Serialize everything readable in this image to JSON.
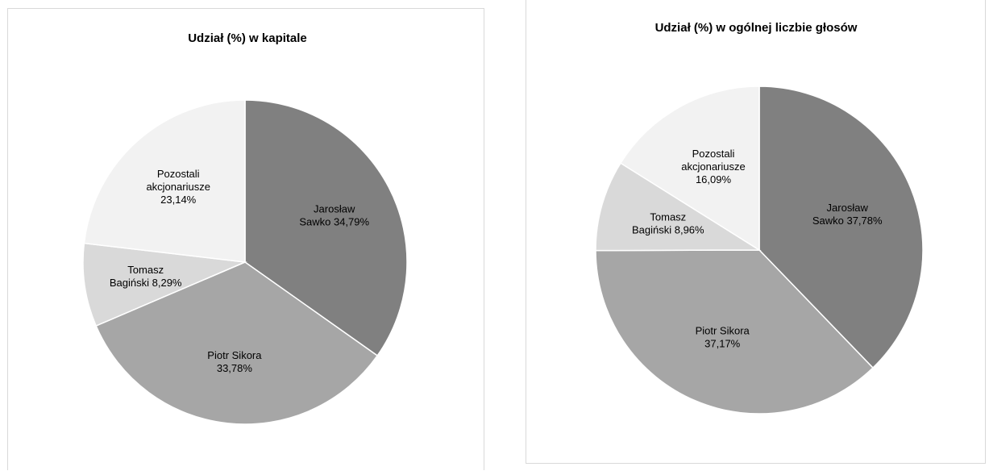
{
  "chart_data": [
    {
      "type": "pie",
      "title": "Udział (%) w kapitale",
      "slices": [
        {
          "label_lines": [
            "Jarosław",
            "Sawko 34,79%"
          ],
          "value": 34.79,
          "color": "#808080"
        },
        {
          "label_lines": [
            "Piotr Sikora",
            "33,78%"
          ],
          "value": 33.78,
          "color": "#a6a6a6"
        },
        {
          "label_lines": [
            "Tomasz",
            "Bagiński 8,29%"
          ],
          "value": 8.29,
          "color": "#d9d9d9"
        },
        {
          "label_lines": [
            "Pozostali",
            "akcjonariusze",
            "23,14%"
          ],
          "value": 23.14,
          "color": "#f2f2f2"
        }
      ]
    },
    {
      "type": "pie",
      "title": "Udział (%) w ogólnej liczbie głosów",
      "slices": [
        {
          "label_lines": [
            "Jarosław",
            "Sawko 37,78%"
          ],
          "value": 37.78,
          "color": "#808080"
        },
        {
          "label_lines": [
            "Piotr Sikora",
            "37,17%"
          ],
          "value": 37.17,
          "color": "#a6a6a6"
        },
        {
          "label_lines": [
            "Tomasz",
            "Bagiński 8,96%"
          ],
          "value": 8.96,
          "color": "#d9d9d9"
        },
        {
          "label_lines": [
            "Pozostali",
            "akcjonariusze",
            "16,09%"
          ],
          "value": 16.09,
          "color": "#f2f2f2"
        }
      ]
    }
  ]
}
